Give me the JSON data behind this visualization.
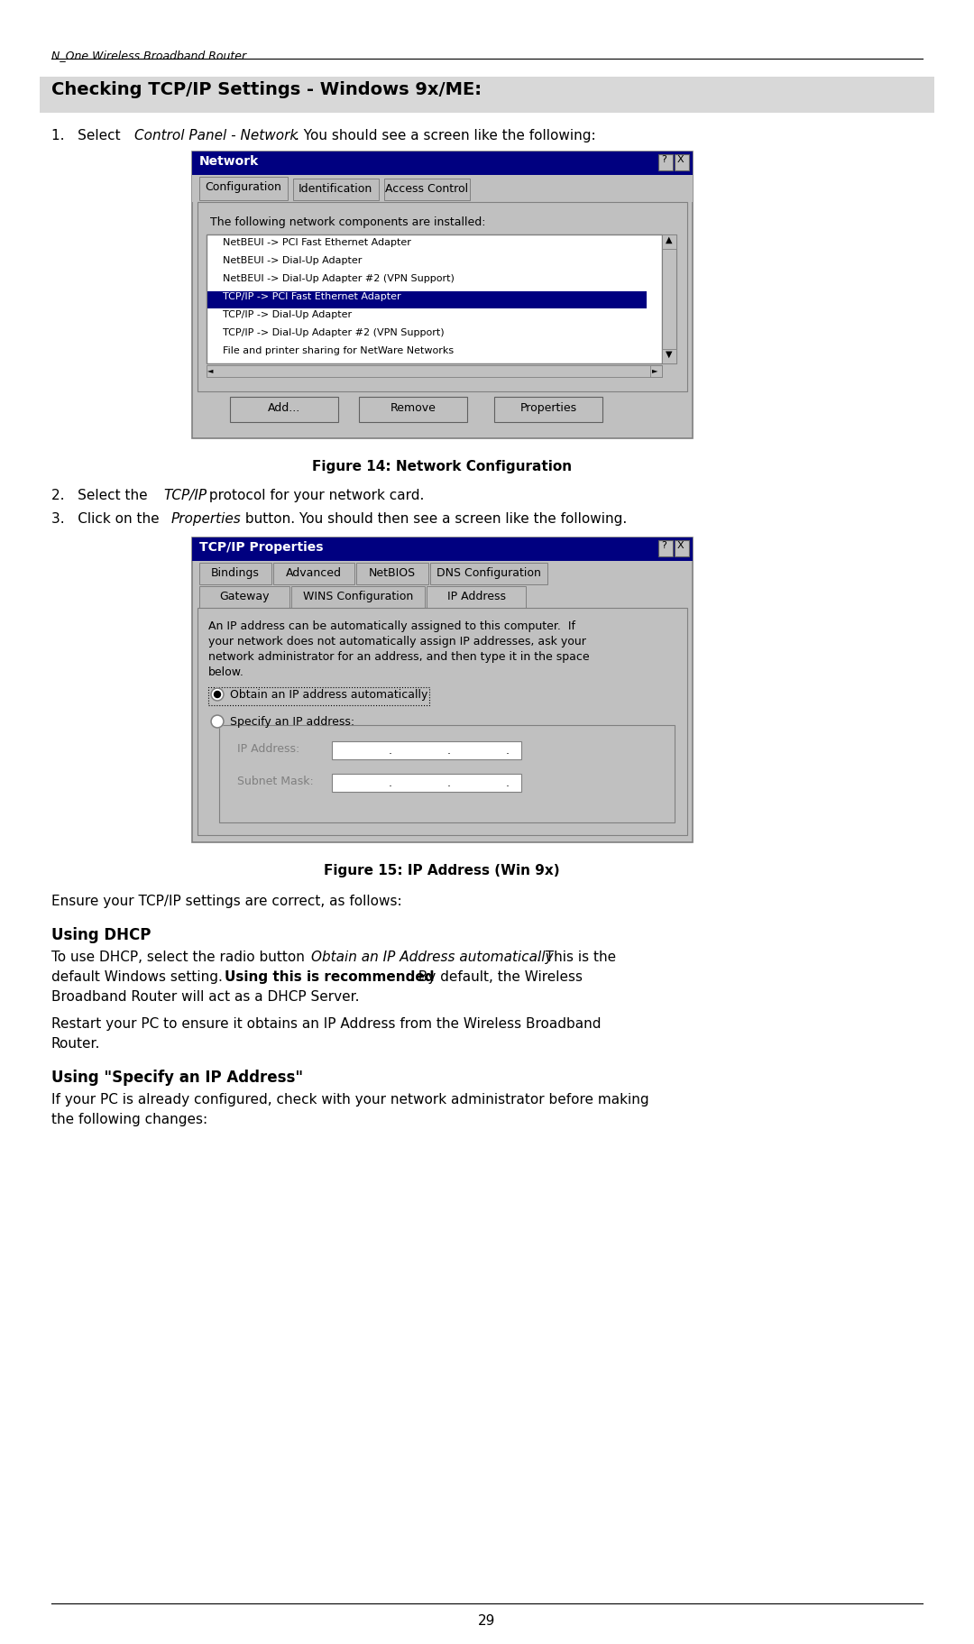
{
  "page_bg": "#ffffff",
  "header_text_normal": "N_One ",
  "header_text_italic": "One",
  "header_text_full": "N_One Wireless Broadband Router",
  "footer_number": "29",
  "section_title": "Checking TCP/IP Settings - Windows 9x/ME:",
  "section_bg": "#d8d8d8",
  "fig14_caption": "Figure 14: Network Configuration",
  "fig15_caption": "Figure 15: IP Address (Win 9x)",
  "ensure_text": "Ensure your TCP/IP settings are correct, as follows:",
  "dhcp_heading": "Using DHCP",
  "specify_heading": "Using \"Specify an IP Address\"",
  "network_items": [
    [
      "NetBEUI -> PCI Fast Ethernet Adapter",
      false
    ],
    [
      "NetBEUI -> Dial-Up Adapter",
      false
    ],
    [
      "NetBEUI -> Dial-Up Adapter #2 (VPN Support)",
      false
    ],
    [
      "TCP/IP -> PCI Fast Ethernet Adapter",
      true
    ],
    [
      "TCP/IP -> Dial-Up Adapter",
      false
    ],
    [
      "TCP/IP -> Dial-Up Adapter #2 (VPN Support)",
      false
    ],
    [
      "File and printer sharing for NetWare Networks",
      false
    ]
  ],
  "desc_lines": [
    "An IP address can be automatically assigned to this computer.  If",
    "your network does not automatically assign IP addresses, ask your",
    "network administrator for an address, and then type it in the space",
    "below."
  ]
}
